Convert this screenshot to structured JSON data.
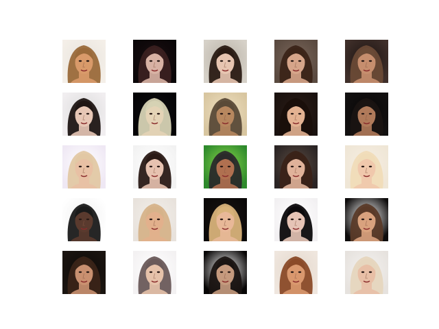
{
  "grid": {
    "rows": 5,
    "cols": 5
  },
  "samples": [
    {
      "bg": "#f4efe8",
      "hair": "#9a6a3a",
      "skin": "#d99a6a",
      "accent": "#e8e4de"
    },
    {
      "bg": "#0a0608",
      "hair": "#3a2020",
      "skin": "#d8b2a4",
      "accent": "#1a0e10"
    },
    {
      "bg": "#d6d1c8",
      "hair": "#2a1b14",
      "skin": "#e7c5b1",
      "accent": "#b9b2a7"
    },
    {
      "bg": "#5a4a40",
      "hair": "#3b2418",
      "skin": "#d6a58a",
      "accent": "#7a665a"
    },
    {
      "bg": "#3f2f2a",
      "hair": "#6a4a36",
      "skin": "#c68e6e",
      "accent": "#1d1412"
    },
    {
      "bg": "#f1eef0",
      "hair": "#1f1614",
      "skin": "#e7c7b6",
      "accent": "#dcdcdc"
    },
    {
      "bg": "#050406",
      "hair": "#d6d2b4",
      "skin": "#e4d3b6",
      "accent": "#0e0e10"
    },
    {
      "bg": "#d8c6a0",
      "hair": "#5a4a38",
      "skin": "#b7875f",
      "accent": "#eedfc0"
    },
    {
      "bg": "#1a120f",
      "hair": "#1a0f0b",
      "skin": "#e3b292",
      "accent": "#2a1b15"
    },
    {
      "bg": "#121010",
      "hair": "#1a1412",
      "skin": "#b07a5a",
      "accent": "#0a0808"
    },
    {
      "bg": "#efe8f4",
      "hair": "#e2c8a4",
      "skin": "#e8c0a4",
      "accent": "#ffffff"
    },
    {
      "bg": "#f2f2f2",
      "hair": "#2a1a16",
      "skin": "#e7c2b0",
      "accent": "#ffffff"
    },
    {
      "bg": "#2e8a2c",
      "hair": "#2a2a2a",
      "skin": "#b07050",
      "accent": "#8bd64a"
    },
    {
      "bg": "#2a2424",
      "hair": "#3a2218",
      "skin": "#e0b29a",
      "accent": "#5a4a40"
    },
    {
      "bg": "#efe6d6",
      "hair": "#f0dcb8",
      "skin": "#f0c8ac",
      "accent": "#f6eee2"
    },
    {
      "bg": "#ffffff",
      "hair": "#1a1a1a",
      "skin": "#5a3a2e",
      "accent": "#f0f0f0"
    },
    {
      "bg": "#e8e2dc",
      "hair": "#d6b38a",
      "skin": "#e2b08c",
      "accent": "#f2efea"
    },
    {
      "bg": "#0a0808",
      "hair": "#d8b27a",
      "skin": "#e8b898",
      "accent": "#1a1412"
    },
    {
      "bg": "#f2f0f2",
      "hair": "#0c0a0c",
      "skin": "#e6c4b6",
      "accent": "#ffffff"
    },
    {
      "bg": "#0e0c0c",
      "hair": "#5a3a28",
      "skin": "#d9a27e",
      "accent": "#ffffff"
    },
    {
      "bg": "#1a1410",
      "hair": "#3a2418",
      "skin": "#c99070",
      "accent": "#0e0a08"
    },
    {
      "bg": "#f3f1f2",
      "hair": "#6a5a5a",
      "skin": "#e6c2aa",
      "accent": "#ffffff"
    },
    {
      "bg": "#080606",
      "hair": "#1a1412",
      "skin": "#c59a7e",
      "accent": "#ffffff"
    },
    {
      "bg": "#efe6de",
      "hair": "#8a4a28",
      "skin": "#d9986e",
      "accent": "#e4d8cc"
    },
    {
      "bg": "#e6e2de",
      "hair": "#e6d6be",
      "skin": "#e8bfa6",
      "accent": "#f4f2f0"
    }
  ]
}
